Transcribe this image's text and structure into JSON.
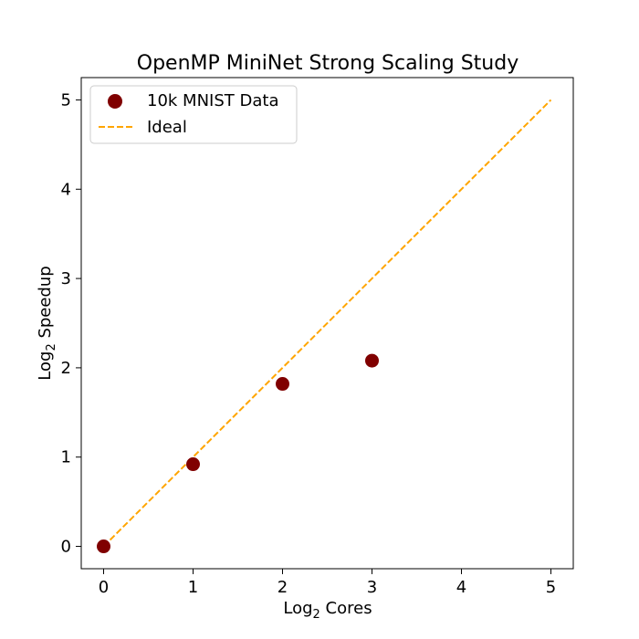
{
  "chart_data": {
    "type": "scatter",
    "title": "OpenMP MiniNet Strong Scaling Study",
    "xlabel": {
      "prefix": "Log",
      "sub": "2",
      "suffix": " Cores"
    },
    "ylabel": {
      "prefix": "Log",
      "sub": "2",
      "suffix": " Speedup"
    },
    "xlim": [
      -0.25,
      5.25
    ],
    "ylim": [
      -0.25,
      5.25
    ],
    "xticks": [
      0,
      1,
      2,
      3,
      4,
      5
    ],
    "yticks": [
      0,
      1,
      2,
      3,
      4,
      5
    ],
    "grid": false,
    "legend_position": "top-left",
    "series": [
      {
        "name": "10k MNIST Data",
        "kind": "scatter",
        "color": "#800000",
        "x": [
          0,
          1,
          2,
          3
        ],
        "y": [
          0,
          0.92,
          1.82,
          2.08
        ]
      },
      {
        "name": "Ideal",
        "kind": "dashed-line",
        "color": "#ffa500",
        "x": [
          0,
          5
        ],
        "y": [
          0,
          5
        ]
      }
    ]
  }
}
